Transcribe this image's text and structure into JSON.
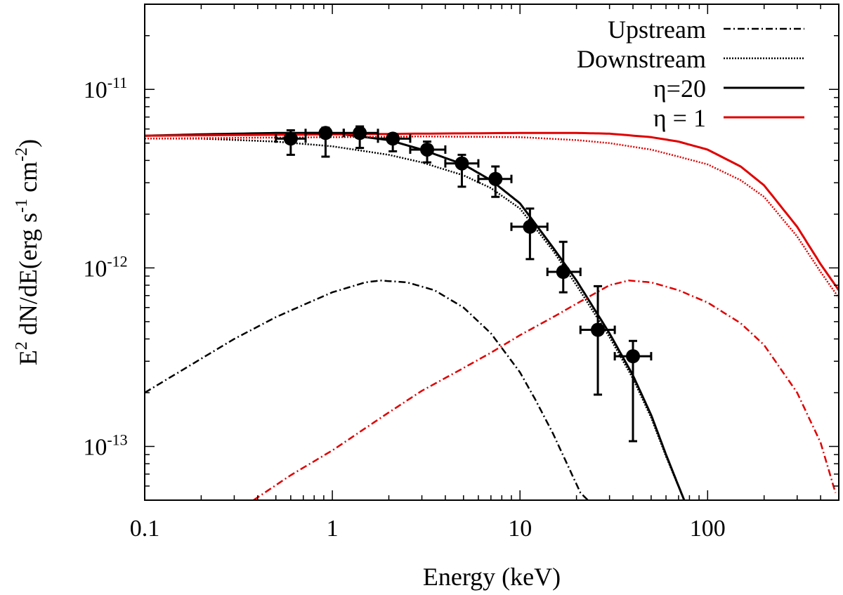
{
  "chart_data": {
    "type": "line",
    "title": "",
    "xlabel": "Energy (keV)",
    "ylabel_parts": {
      "e": "E",
      "sup2": "2",
      "mid": " dN/dE(erg s",
      "supm1": "-1",
      "cm": " cm",
      "supm2": "-2",
      "close": ")"
    },
    "xscale": "log",
    "yscale": "log",
    "xlim": [
      0.1,
      500
    ],
    "ylim": [
      5e-14,
      3e-11
    ],
    "x_ticks": [
      {
        "value": 0.1,
        "label": "0.1"
      },
      {
        "value": 1,
        "label": "1"
      },
      {
        "value": 10,
        "label": "10"
      },
      {
        "value": 100,
        "label": "100"
      }
    ],
    "y_ticks": [
      {
        "value": 1e-11,
        "base": "10",
        "exp": "-11"
      },
      {
        "value": 1e-12,
        "base": "10",
        "exp": "-12"
      },
      {
        "value": 1e-13,
        "base": "10",
        "exp": "-13"
      }
    ],
    "legend": {
      "position": "top-right",
      "entries": [
        {
          "label": "Upstream",
          "style": "dashdot",
          "color": "#000000"
        },
        {
          "label": "Downstream",
          "style": "dotted",
          "color": "#000000"
        },
        {
          "label": "η=20",
          "style": "solid",
          "color": "#000000"
        },
        {
          "label": "η = 1",
          "style": "solid",
          "color": "#e00000"
        }
      ]
    },
    "series": [
      {
        "name": "η=20 total",
        "color": "#000000",
        "style": "solid",
        "x": [
          0.1,
          0.2,
          0.5,
          1,
          2,
          3,
          5,
          7,
          10,
          15,
          20,
          30,
          40,
          50,
          60,
          75
        ],
        "y": [
          5.5e-12,
          5.6e-12,
          5.7e-12,
          5.7e-12,
          5.2e-12,
          4.6e-12,
          3.8e-12,
          3.1e-12,
          2.3e-12,
          1.3e-12,
          8.5e-13,
          4.3e-13,
          2.5e-13,
          1.5e-13,
          9e-14,
          5e-14
        ]
      },
      {
        "name": "η=20 downstream",
        "color": "#000000",
        "style": "dotted",
        "x": [
          0.1,
          0.2,
          0.5,
          1,
          2,
          3,
          5,
          7,
          10,
          15,
          20,
          30,
          40,
          50,
          60,
          75
        ],
        "y": [
          5.3e-12,
          5.3e-12,
          5.1e-12,
          4.8e-12,
          4.3e-12,
          3.9e-12,
          3.3e-12,
          2.8e-12,
          2.15e-12,
          1.25e-12,
          8e-13,
          4.1e-13,
          2.4e-13,
          1.45e-13,
          8.8e-14,
          5e-14
        ]
      },
      {
        "name": "η=20 upstream",
        "color": "#000000",
        "style": "dashdot",
        "x": [
          0.1,
          0.2,
          0.3,
          0.5,
          0.7,
          1,
          1.5,
          1.8,
          2.5,
          3.5,
          5,
          7,
          10,
          12,
          15,
          18,
          21,
          23
        ],
        "y": [
          2e-13,
          3.1e-13,
          4e-13,
          5.3e-13,
          6.2e-13,
          7.3e-13,
          8.3e-13,
          8.5e-13,
          8.3e-13,
          7.5e-13,
          6e-13,
          4.3e-13,
          2.6e-13,
          1.85e-13,
          1.18e-13,
          7.8e-14,
          5.5e-14,
          5e-14
        ]
      },
      {
        "name": "η = 1 total",
        "color": "#e00000",
        "style": "solid",
        "x": [
          0.1,
          0.3,
          1,
          3,
          10,
          20,
          30,
          50,
          70,
          100,
          150,
          200,
          300,
          400,
          500
        ],
        "y": [
          5.5e-12,
          5.55e-12,
          5.6e-12,
          5.65e-12,
          5.7e-12,
          5.7e-12,
          5.65e-12,
          5.4e-12,
          5.1e-12,
          4.6e-12,
          3.7e-12,
          2.9e-12,
          1.7e-12,
          1.05e-12,
          7.5e-13
        ]
      },
      {
        "name": "η = 1 downstream",
        "color": "#e00000",
        "style": "dotted",
        "x": [
          0.1,
          0.3,
          1,
          3,
          10,
          20,
          30,
          50,
          70,
          100,
          150,
          200,
          300,
          400,
          500
        ],
        "y": [
          5.3e-12,
          5.35e-12,
          5.4e-12,
          5.45e-12,
          5.4e-12,
          5.2e-12,
          5e-12,
          4.6e-12,
          4.2e-12,
          3.8e-12,
          3.1e-12,
          2.5e-12,
          1.5e-12,
          9.5e-13,
          6.8e-13
        ]
      },
      {
        "name": "η = 1 upstream",
        "color": "#e00000",
        "style": "dashdot",
        "x": [
          0.38,
          0.6,
          1,
          2,
          3,
          5,
          7,
          10,
          15,
          20,
          30,
          38,
          50,
          70,
          100,
          150,
          200,
          300,
          400,
          480
        ],
        "y": [
          5e-14,
          6.9e-14,
          9.5e-14,
          1.55e-13,
          2.05e-13,
          2.75e-13,
          3.35e-13,
          4.2e-13,
          5.3e-13,
          6.3e-13,
          8e-13,
          8.5e-13,
          8.3e-13,
          7.5e-13,
          6.4e-13,
          4.9e-13,
          3.7e-13,
          2e-13,
          1.05e-13,
          5.5e-14
        ]
      }
    ],
    "data_points": [
      {
        "x": 0.6,
        "y": 5.3e-12,
        "xlo": 0.5,
        "xhi": 0.72,
        "ylo": 4.3e-12,
        "yhi": 5.9e-12
      },
      {
        "x": 0.92,
        "y": 5.7e-12,
        "xlo": 0.72,
        "xhi": 1.15,
        "ylo": 4.2e-12,
        "yhi": 6.1e-12
      },
      {
        "x": 1.4,
        "y": 5.7e-12,
        "xlo": 1.15,
        "xhi": 1.75,
        "ylo": 4.7e-12,
        "yhi": 6.2e-12
      },
      {
        "x": 2.1,
        "y": 5.3e-12,
        "xlo": 1.75,
        "xhi": 2.6,
        "ylo": 4.5e-12,
        "yhi": 5.6e-12
      },
      {
        "x": 3.2,
        "y": 4.6e-12,
        "xlo": 2.6,
        "xhi": 4.0,
        "ylo": 3.9e-12,
        "yhi": 5.1e-12
      },
      {
        "x": 4.9,
        "y": 3.85e-12,
        "xlo": 4.0,
        "xhi": 6.0,
        "ylo": 2.85e-12,
        "yhi": 4.3e-12
      },
      {
        "x": 7.4,
        "y": 3.15e-12,
        "xlo": 6.0,
        "xhi": 9.0,
        "ylo": 2.5e-12,
        "yhi": 3.7e-12
      },
      {
        "x": 11.3,
        "y": 1.7e-12,
        "xlo": 9.0,
        "xhi": 14.0,
        "ylo": 1.12e-12,
        "yhi": 2.15e-12
      },
      {
        "x": 17,
        "y": 9.5e-13,
        "xlo": 14.0,
        "xhi": 21.0,
        "ylo": 7.3e-13,
        "yhi": 1.4e-12
      },
      {
        "x": 26,
        "y": 4.5e-13,
        "xlo": 21.0,
        "xhi": 32.0,
        "ylo": 1.95e-13,
        "yhi": 7.9e-13
      },
      {
        "x": 40,
        "y": 3.2e-13,
        "xlo": 32.0,
        "xhi": 50.0,
        "ylo": 1.07e-13,
        "yhi": 3.9e-13
      }
    ]
  }
}
